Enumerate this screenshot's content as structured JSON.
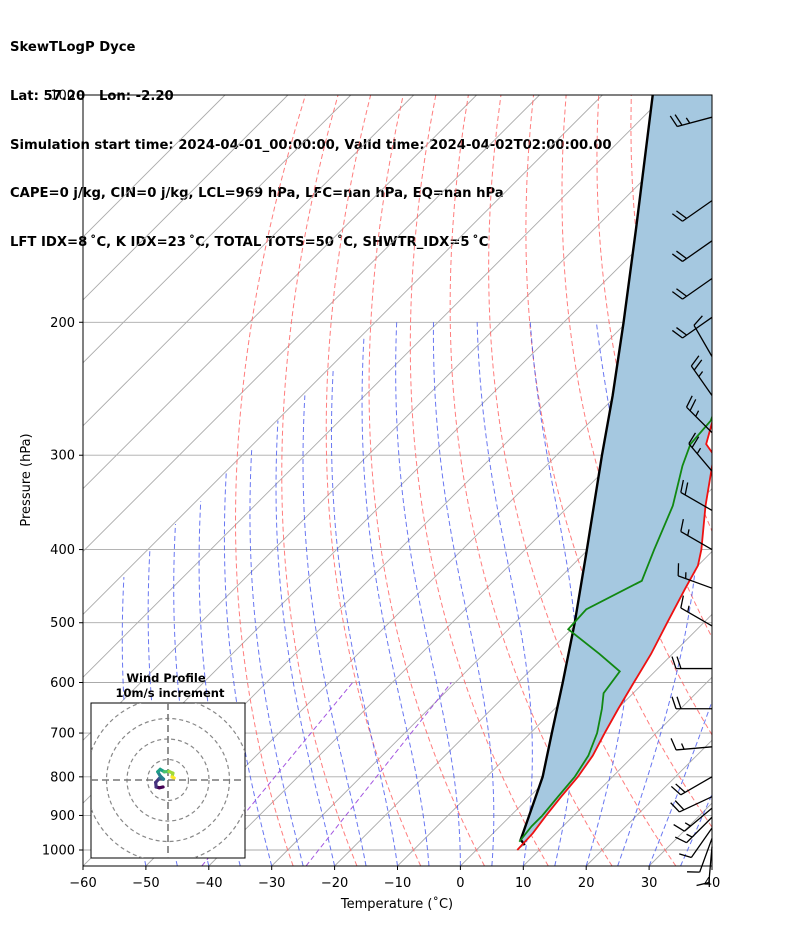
{
  "header": {
    "lines": [
      "SkewTLogP Dyce",
      "Lat: 57.20   Lon: -2.20",
      "Simulation start time: 2024-04-01_00:00:00, Valid time: 2024-04-02T02:00:00.00",
      "CAPE=0 j/kg, CIN=0 j/kg, LCL=969 hPa, LFC=nan hPa, EQ=nan hPa",
      "LFT IDX=8 ˚C, K IDX=23 ˚C, TOTAL TOTS=50 ˚C, SHWTR_IDX=5 ˚C"
    ]
  },
  "chart_data": [
    {
      "type": "line",
      "subtype": "skew-t log-p",
      "xlabel": "Temperature (˚C)",
      "ylabel": "Pressure (hPa)",
      "xlim": [
        -60,
        40
      ],
      "ylim": [
        1050,
        100
      ],
      "y_scale": "log",
      "x_ticks": [
        -60,
        -50,
        -40,
        -30,
        -20,
        -10,
        0,
        10,
        20,
        30,
        40
      ],
      "y_ticks": [
        100,
        200,
        300,
        400,
        500,
        600,
        700,
        800,
        900,
        1000
      ],
      "grid": true,
      "colors": {
        "temperature": "#ee1111",
        "dewpoint": "#118811",
        "parcel": "#000000",
        "fill": "#a5c8e0",
        "dry_adiabat": "#ff6666",
        "moist_adiabat": "#4455ee",
        "mixing_ratio": "#9944dd",
        "isotherm": "#aaaaaa"
      },
      "series": [
        {
          "name": "temperature",
          "points": [
            [
              1000,
              6.5
            ],
            [
              950,
              6.3
            ],
            [
              900,
              5.6
            ],
            [
              850,
              5.0
            ],
            [
              800,
              4.5
            ],
            [
              750,
              3.5
            ],
            [
              700,
              1.8
            ],
            [
              650,
              0.1
            ],
            [
              600,
              -1.6
            ],
            [
              550,
              -3.4
            ],
            [
              500,
              -5.8
            ],
            [
              450,
              -8.4
            ],
            [
              420,
              -10.0
            ],
            [
              400,
              -12.0
            ],
            [
              350,
              -18.3
            ],
            [
              300,
              -25.0
            ],
            [
              290,
              -28.0
            ],
            [
              270,
              -30.7
            ],
            [
              250,
              -33.0
            ],
            [
              230,
              -35.5
            ],
            [
              215,
              -35.5
            ],
            [
              200,
              -39.0
            ],
            [
              180,
              -42.0
            ],
            [
              160,
              -45.5
            ],
            [
              140,
              -50.0
            ],
            [
              120,
              -54.5
            ],
            [
              100,
              -60.0
            ]
          ]
        },
        {
          "name": "dewpoint",
          "points": [
            [
              975,
              5.5
            ],
            [
              930,
              5.0
            ],
            [
              900,
              5.0
            ],
            [
              850,
              4.5
            ],
            [
              800,
              4.0
            ],
            [
              750,
              2.8
            ],
            [
              700,
              0.6
            ],
            [
              650,
              -2.5
            ],
            [
              620,
              -4.7
            ],
            [
              580,
              -5.6
            ],
            [
              550,
              -11.6
            ],
            [
              510,
              -20.5
            ],
            [
              480,
              -20.8
            ],
            [
              440,
              -16.5
            ],
            [
              400,
              -19.5
            ],
            [
              350,
              -23.5
            ],
            [
              310,
              -28.3
            ],
            [
              290,
              -30.5
            ],
            [
              270,
              -31.0
            ],
            [
              250,
              -33.5
            ],
            [
              230,
              -35.5
            ],
            [
              220,
              -37.5
            ],
            [
              210,
              -40.0
            ],
            [
              200,
              -41.5
            ],
            [
              170,
              -42.5
            ],
            [
              150,
              -44.5
            ],
            [
              130,
              -49.0
            ],
            [
              110,
              -57.0
            ],
            [
              100,
              -61.5
            ]
          ]
        },
        {
          "name": "parcel",
          "points": [
            [
              985,
              6.9
            ],
            [
              969,
              5.4
            ],
            [
              900,
              2.9
            ],
            [
              800,
              -1.1
            ],
            [
              700,
              -6.6
            ],
            [
              600,
              -12.9
            ],
            [
              500,
              -20.5
            ],
            [
              400,
              -30.2
            ],
            [
              300,
              -42.8
            ],
            [
              250,
              -50.6
            ],
            [
              200,
              -60.5
            ],
            [
              150,
              -73.5
            ],
            [
              100,
              -92.0
            ]
          ]
        }
      ]
    },
    {
      "type": "line",
      "subtype": "hodograph",
      "title": "Wind Profile",
      "subtitle": "10m/s increment",
      "ring_increment": 10,
      "units": "m/s",
      "points": [
        [
          -2.4,
          -3.4
        ],
        [
          -4.2,
          -3.8
        ],
        [
          -5.8,
          -3.4
        ],
        [
          -6.0,
          -1.2
        ],
        [
          -4.2,
          0.8
        ],
        [
          -2.2,
          0.4
        ],
        [
          -3.8,
          2.0
        ],
        [
          -5.0,
          4.0
        ],
        [
          -3.8,
          5.2
        ],
        [
          -1.8,
          4.0
        ],
        [
          0.5,
          4.2
        ],
        [
          2.4,
          3.3
        ],
        [
          2.0,
          1.5
        ],
        [
          3.0,
          1.0
        ]
      ]
    }
  ],
  "wind_barbs": [
    {
      "p": 107,
      "dir": 255,
      "kt": 25
    },
    {
      "p": 138,
      "dir": 235,
      "kt": 20
    },
    {
      "p": 156,
      "dir": 235,
      "kt": 20
    },
    {
      "p": 175,
      "dir": 235,
      "kt": 20
    },
    {
      "p": 197,
      "dir": 235,
      "kt": 20
    },
    {
      "p": 222,
      "dir": 330,
      "kt": 10
    },
    {
      "p": 250,
      "dir": 325,
      "kt": 25
    },
    {
      "p": 280,
      "dir": 315,
      "kt": 25
    },
    {
      "p": 315,
      "dir": 320,
      "kt": 25
    },
    {
      "p": 355,
      "dir": 300,
      "kt": 20
    },
    {
      "p": 400,
      "dir": 300,
      "kt": 15
    },
    {
      "p": 450,
      "dir": 290,
      "kt": 15
    },
    {
      "p": 505,
      "dir": 300,
      "kt": 15
    },
    {
      "p": 575,
      "dir": 270,
      "kt": 20
    },
    {
      "p": 650,
      "dir": 270,
      "kt": 20
    },
    {
      "p": 730,
      "dir": 265,
      "kt": 15
    },
    {
      "p": 800,
      "dir": 240,
      "kt": 20
    },
    {
      "p": 850,
      "dir": 245,
      "kt": 20
    },
    {
      "p": 880,
      "dir": 230,
      "kt": 15
    },
    {
      "p": 905,
      "dir": 225,
      "kt": 15
    },
    {
      "p": 935,
      "dir": 215,
      "kt": 10
    },
    {
      "p": 965,
      "dir": 200,
      "kt": 10
    },
    {
      "p": 990,
      "dir": 185,
      "kt": 10
    }
  ]
}
